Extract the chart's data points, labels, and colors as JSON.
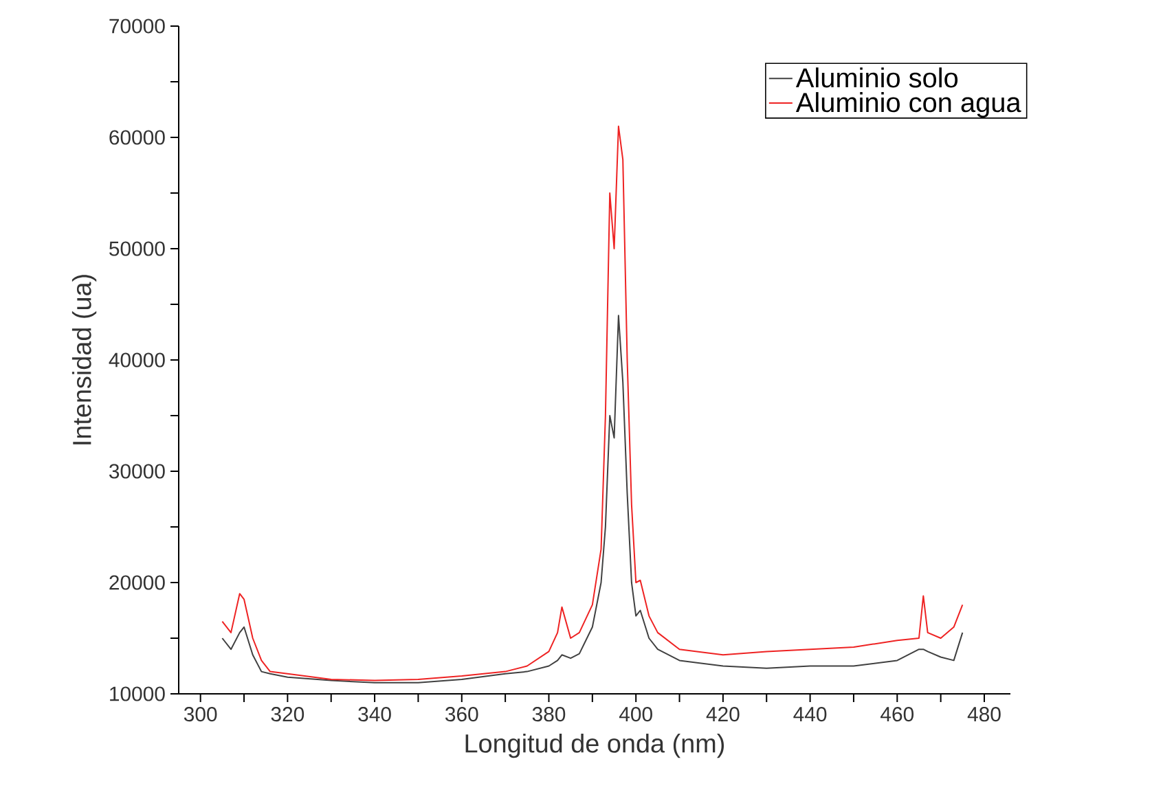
{
  "chart_data": {
    "type": "line",
    "xlabel": "Longitud de onda (nm)",
    "ylabel": "Intensidad (ua)",
    "xlim": [
      295,
      486
    ],
    "ylim": [
      10000,
      70000
    ],
    "xticks": [
      300,
      {
        "value": 310,
        "label": null
      },
      320,
      {
        "value": 330,
        "label": null
      },
      340,
      {
        "value": 350,
        "label": null
      },
      360,
      {
        "value": 370,
        "label": null
      },
      380,
      {
        "value": 390,
        "label": null
      },
      400,
      {
        "value": 410,
        "label": null
      },
      420,
      {
        "value": 430,
        "label": null
      },
      440,
      {
        "value": 450,
        "label": null
      },
      460,
      {
        "value": 470,
        "label": null
      },
      480
    ],
    "yticks": [
      10000,
      {
        "value": 15000,
        "label": null
      },
      20000,
      {
        "value": 25000,
        "label": null
      },
      30000,
      {
        "value": 35000,
        "label": null
      },
      40000,
      {
        "value": 45000,
        "label": null
      },
      50000,
      {
        "value": 55000,
        "label": null
      },
      60000,
      {
        "value": 65000,
        "label": null
      },
      70000
    ],
    "legend": "top right",
    "grid": false,
    "marker": "none",
    "line_style": "solid",
    "x": [
      305,
      307,
      309,
      310,
      312,
      314,
      316,
      320,
      330,
      340,
      350,
      360,
      370,
      375,
      380,
      382,
      383,
      385,
      387,
      390,
      392,
      393,
      394,
      395,
      396,
      397,
      398,
      399,
      400,
      401,
      403,
      405,
      410,
      420,
      430,
      440,
      450,
      460,
      465,
      466,
      467,
      470,
      473,
      475
    ],
    "series": [
      {
        "name": "Aluminio solo",
        "color": "#404040",
        "values": [
          15000,
          14000,
          15500,
          16000,
          13500,
          12000,
          11800,
          11500,
          11200,
          11000,
          11000,
          11300,
          11800,
          12000,
          12500,
          13000,
          13500,
          13200,
          13600,
          16000,
          20000,
          25000,
          35000,
          33000,
          44000,
          38000,
          28000,
          20000,
          17000,
          17500,
          15000,
          14000,
          13000,
          12500,
          12300,
          12500,
          12500,
          13000,
          14000,
          14000,
          13800,
          13300,
          13000,
          15500
        ]
      },
      {
        "name": "Aluminio con agua",
        "color": "#ee2222",
        "values": [
          16500,
          15500,
          19000,
          18500,
          15000,
          13000,
          12000,
          11800,
          11300,
          11200,
          11300,
          11600,
          12000,
          12500,
          13800,
          15500,
          17800,
          15000,
          15500,
          18000,
          23000,
          35000,
          55000,
          50000,
          61000,
          58000,
          40000,
          27000,
          20000,
          20200,
          17000,
          15500,
          14000,
          13500,
          13800,
          14000,
          14200,
          14800,
          15000,
          18800,
          15500,
          15000,
          16000,
          18000
        ]
      }
    ]
  }
}
